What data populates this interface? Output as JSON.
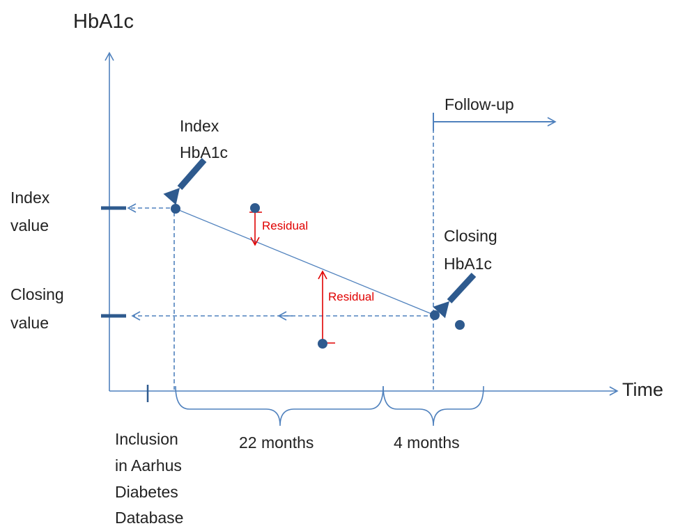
{
  "axes": {
    "y_label": "HbA1c",
    "x_label": "Time"
  },
  "y_labels": {
    "index_value": [
      "Index",
      "value"
    ],
    "closing_value": [
      "Closing",
      "value"
    ]
  },
  "callouts": {
    "index_hba1c": [
      "Index",
      "HbA1c"
    ],
    "closing_hba1c": [
      "Closing",
      "HbA1c"
    ],
    "follow_up": "Follow-up"
  },
  "residuals": [
    "Residual",
    "Residual"
  ],
  "periods": [
    "22 months",
    "4 months"
  ],
  "inclusion": [
    "Inclusion",
    "in Aarhus",
    "Diabetes",
    "Database"
  ]
}
